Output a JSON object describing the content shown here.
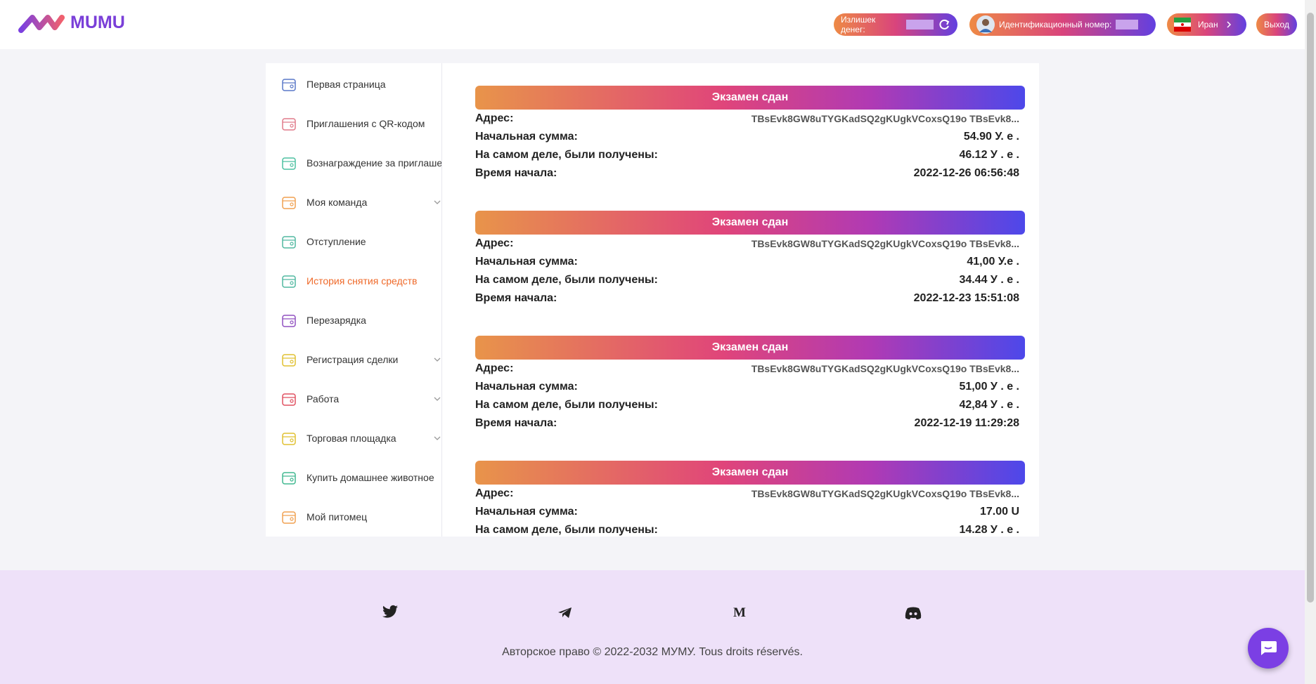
{
  "header": {
    "logo": "MUMU",
    "balance_label": "Излишек денег:",
    "id_label": "Идентификационный номер:",
    "country": "Иран",
    "logout": "Выход"
  },
  "nav": [
    {
      "label": "Первая страница"
    },
    {
      "label": "Приглашения с QR-кодом"
    },
    {
      "label": "Вознаграждение за приглаше"
    },
    {
      "label": "Моя команда",
      "expandable": true
    },
    {
      "label": "Отступление"
    },
    {
      "label": "История снятия средств",
      "active": true
    },
    {
      "label": "Перезарядка"
    },
    {
      "label": "Регистрация сделки",
      "expandable": true
    },
    {
      "label": "Работа",
      "expandable": true
    },
    {
      "label": "Торговая площадка",
      "expandable": true
    },
    {
      "label": "Купить домашнее животное"
    },
    {
      "label": "Мой питомец"
    }
  ],
  "records": [
    {
      "status": "Экзамен сдан",
      "rows": [
        [
          "Адрес:",
          "TBsEvk8GW8uTYGKadSQ2gKUgkVCoxsQ19o TBsEvk8..."
        ],
        [
          "Начальная сумма:",
          "54.90 У. е ."
        ],
        [
          "На самом деле, были получены:",
          "46.12 У . е ."
        ],
        [
          "Время начала:",
          "2022-12-26 06:56:48"
        ]
      ]
    },
    {
      "status": "Экзамен сдан",
      "rows": [
        [
          "Адрес:",
          "TBsEvk8GW8uTYGKadSQ2gKUgkVCoxsQ19o TBsEvk8..."
        ],
        [
          "Начальная сумма:",
          "41,00 У.е ."
        ],
        [
          "На самом деле, были получены:",
          "34.44 У . е ."
        ],
        [
          "Время начала:",
          "2022-12-23 15:51:08"
        ]
      ]
    },
    {
      "status": "Экзамен сдан",
      "rows": [
        [
          "Адрес:",
          "TBsEvk8GW8uTYGKadSQ2gKUgkVCoxsQ19o TBsEvk8..."
        ],
        [
          "Начальная сумма:",
          "51,00 У . е ."
        ],
        [
          "На самом деле, были получены:",
          "42,84 У . е ."
        ],
        [
          "Время начала:",
          "2022-12-19 11:29:28"
        ]
      ]
    },
    {
      "status": "Экзамен сдан",
      "rows": [
        [
          "Адрес:",
          "TBsEvk8GW8uTYGKadSQ2gKUgkVCoxsQ19o TBsEvk8..."
        ],
        [
          "Начальная сумма:",
          "17.00 U"
        ],
        [
          "На самом деле, были получены:",
          "14.28 У . е ."
        ]
      ]
    }
  ],
  "footer": {
    "copyright": "Авторское право © 2022-2032 МУМУ. Tous droits réservés."
  }
}
